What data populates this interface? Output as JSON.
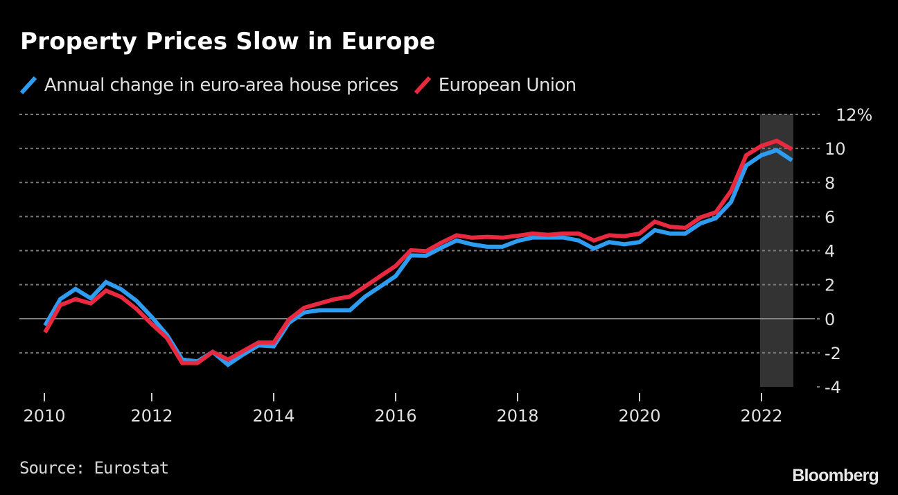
{
  "header": {
    "title": "Property Prices Slow in Europe"
  },
  "footer": {
    "source": "Source: Eurostat",
    "brand": "Bloomberg"
  },
  "colors": {
    "background": "#000000",
    "euro_area": "#2e9cf0",
    "eu": "#e8293f",
    "grid": "#7a7a7a",
    "zero_line": "#8c8c8c",
    "highlight_band": "#333333",
    "text": "#e0e0e0"
  },
  "chart_data": {
    "type": "line",
    "title": "Property Prices Slow in Europe",
    "xlabel": "",
    "ylabel": "",
    "y_unit": "%",
    "ylim": [
      -4,
      12
    ],
    "y_ticks": [
      12,
      10,
      8,
      6,
      4,
      2,
      0,
      -2,
      -4
    ],
    "y_tick_labels": [
      "12%",
      "10",
      "8",
      "6",
      "4",
      "2",
      "0",
      "-2",
      "-4"
    ],
    "x_ticks": [
      2010,
      2012,
      2014,
      2016,
      2018,
      2020,
      2022
    ],
    "x_tick_labels": [
      "2010",
      "2012",
      "2014",
      "2016",
      "2018",
      "2020",
      "2022"
    ],
    "x_range": [
      2010,
      2022.75
    ],
    "grid": true,
    "legend_position": "top-left",
    "highlight": {
      "from": 2022.0,
      "to": 2022.5,
      "label": ""
    },
    "x": [
      "2010 Q1",
      "2010 Q2",
      "2010 Q3",
      "2010 Q4",
      "2011 Q1",
      "2011 Q2",
      "2011 Q3",
      "2011 Q4",
      "2012 Q1",
      "2012 Q2",
      "2012 Q3",
      "2012 Q4",
      "2013 Q1",
      "2013 Q2",
      "2013 Q3",
      "2013 Q4",
      "2014 Q1",
      "2014 Q2",
      "2014 Q3",
      "2014 Q4",
      "2015 Q1",
      "2015 Q2",
      "2015 Q3",
      "2015 Q4",
      "2016 Q1",
      "2016 Q2",
      "2016 Q3",
      "2016 Q4",
      "2017 Q1",
      "2017 Q2",
      "2017 Q3",
      "2017 Q4",
      "2018 Q1",
      "2018 Q2",
      "2018 Q3",
      "2018 Q4",
      "2019 Q1",
      "2019 Q2",
      "2019 Q3",
      "2019 Q4",
      "2020 Q1",
      "2020 Q2",
      "2020 Q3",
      "2020 Q4",
      "2021 Q1",
      "2021 Q2",
      "2021 Q3",
      "2021 Q4",
      "2022 Q1",
      "2022 Q2"
    ],
    "series": [
      {
        "name": "Annual change in euro-area house prices",
        "color": "#2e9cf0",
        "values": [
          -0.4,
          1.15,
          1.75,
          1.2,
          2.15,
          1.73,
          1.05,
          0.1,
          -0.95,
          -2.4,
          -2.5,
          -1.95,
          -2.7,
          -2.1,
          -1.57,
          -1.62,
          -0.24,
          0.37,
          0.5,
          0.5,
          0.5,
          1.3,
          1.9,
          2.5,
          3.72,
          3.7,
          4.17,
          4.6,
          4.37,
          4.23,
          4.23,
          4.57,
          4.77,
          4.77,
          4.77,
          4.6,
          4.12,
          4.5,
          4.37,
          4.5,
          5.2,
          5.0,
          5.0,
          5.6,
          5.9,
          6.85,
          9.0,
          9.6,
          9.9,
          9.3
        ]
      },
      {
        "name": "European Union",
        "color": "#e8293f",
        "values": [
          -0.8,
          0.8,
          1.15,
          0.9,
          1.65,
          1.28,
          0.57,
          -0.31,
          -1.13,
          -2.6,
          -2.6,
          -1.95,
          -2.4,
          -1.9,
          -1.4,
          -1.4,
          -0.05,
          0.64,
          0.9,
          1.15,
          1.3,
          1.9,
          2.5,
          3.1,
          4.02,
          3.97,
          4.47,
          4.9,
          4.76,
          4.81,
          4.76,
          4.87,
          5.0,
          4.93,
          5.0,
          5.0,
          4.6,
          4.9,
          4.85,
          5.0,
          5.7,
          5.4,
          5.33,
          5.95,
          6.25,
          7.5,
          9.6,
          10.15,
          10.45,
          9.95
        ]
      }
    ]
  }
}
